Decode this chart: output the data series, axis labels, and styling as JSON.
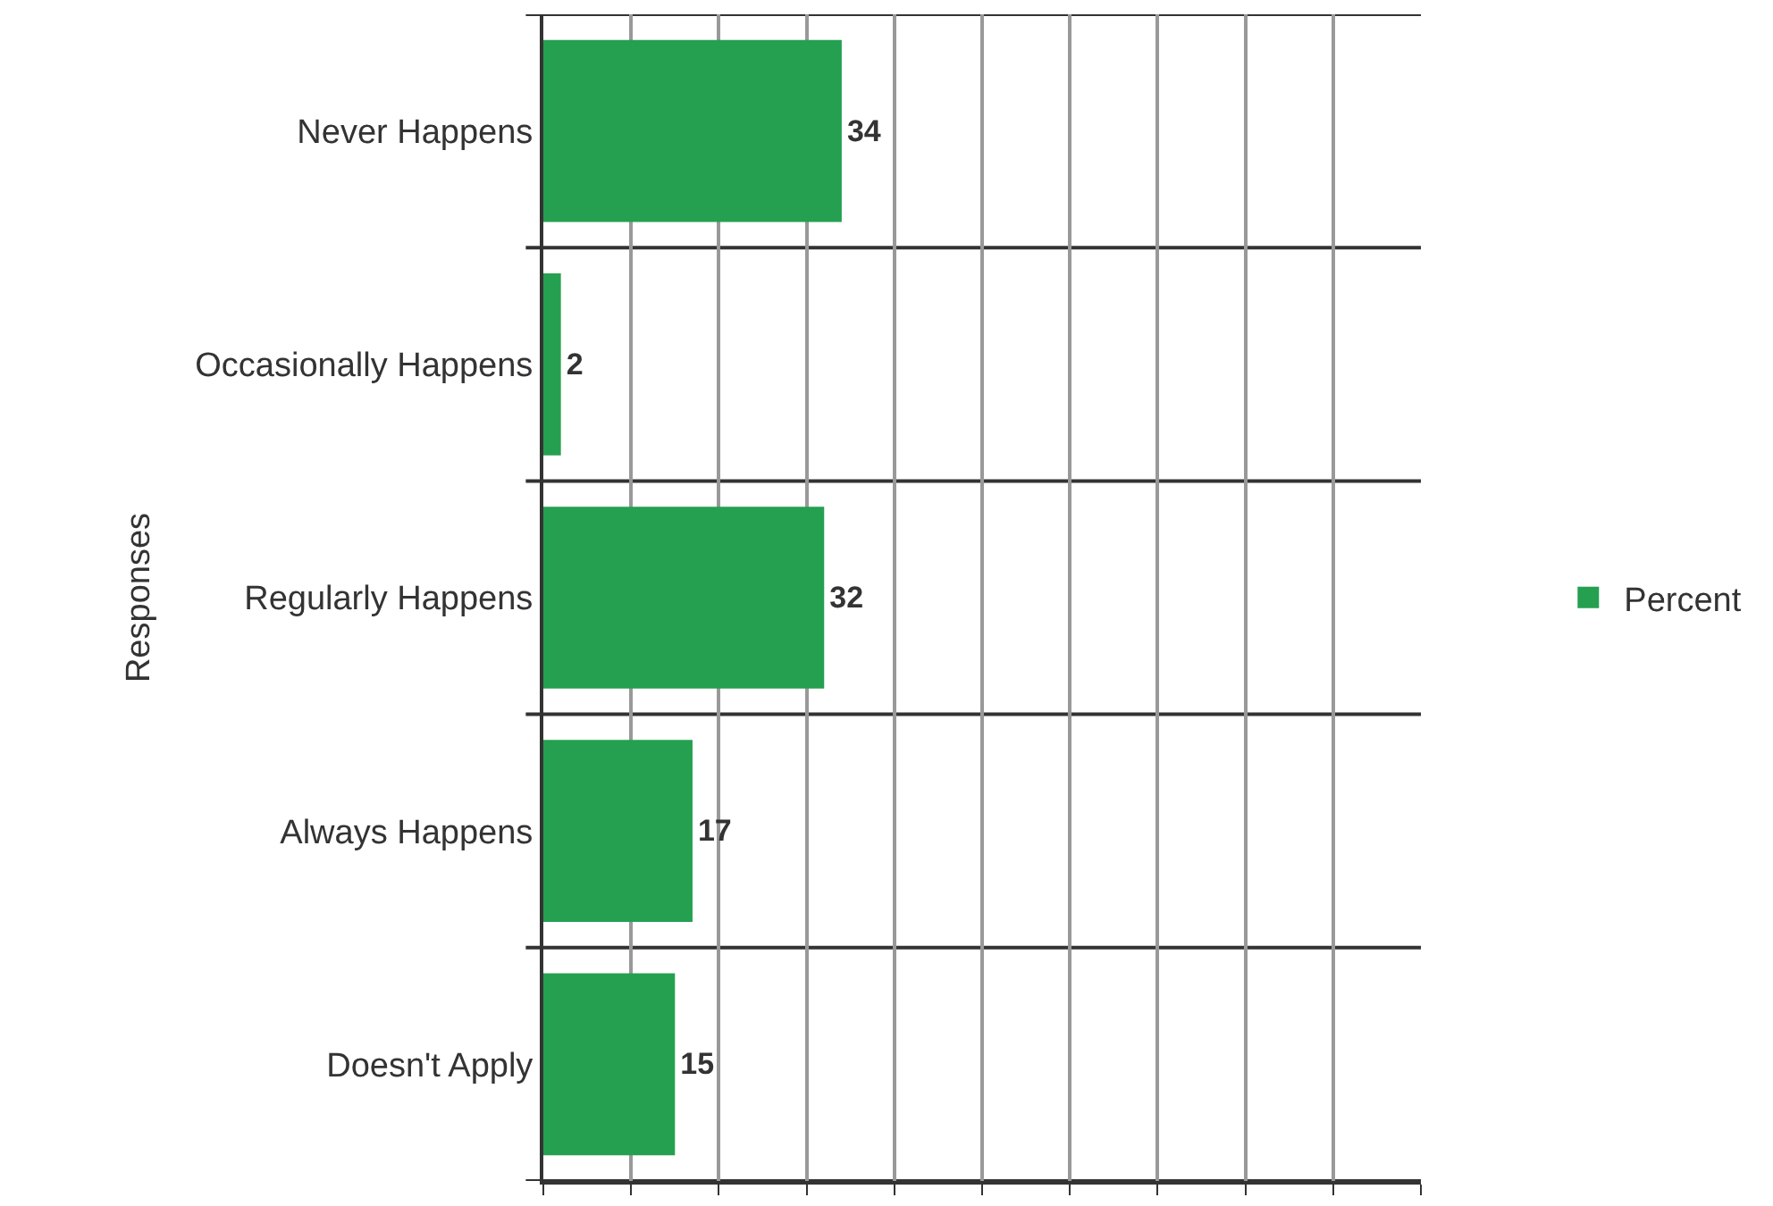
{
  "chart_data": {
    "type": "bar",
    "orientation": "horizontal",
    "ylabel": "Responses",
    "categories": [
      "Never Happens",
      "Occasionally Happens",
      "Regularly Happens",
      "Always Happens",
      "Doesn't Apply"
    ],
    "series": [
      {
        "name": "Percent",
        "color": "#25a050",
        "values": [
          34,
          2,
          32,
          17,
          15
        ]
      }
    ],
    "xlim": [
      0,
      100
    ],
    "xticks": [
      {
        "value": 0,
        "label": null
      },
      {
        "value": 10,
        "label": null
      },
      {
        "value": 20,
        "label": null
      },
      {
        "value": 30,
        "label": null
      },
      {
        "value": 40,
        "label": null
      },
      {
        "value": 50,
        "label": null
      },
      {
        "value": 60,
        "label": null
      },
      {
        "value": 70,
        "label": null
      },
      {
        "value": 80,
        "label": null
      },
      {
        "value": 90,
        "label": null
      },
      {
        "value": 100,
        "label": null
      }
    ],
    "tick_labels": "y",
    "grid": true,
    "legend": "right",
    "data_labels": true
  }
}
